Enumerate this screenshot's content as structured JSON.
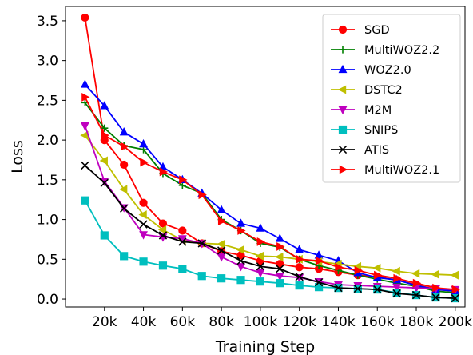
{
  "chart_data": {
    "type": "line",
    "xlabel": "Training Step",
    "ylabel": "Loss",
    "xlim": [
      0,
      205000
    ],
    "ylim": [
      -0.1,
      3.68
    ],
    "x_ticks": [
      20000,
      40000,
      60000,
      80000,
      100000,
      120000,
      140000,
      160000,
      180000,
      200000
    ],
    "x_tick_labels": [
      "20k",
      "40k",
      "60k",
      "80k",
      "100k",
      "120k",
      "140k",
      "160k",
      "180k",
      "200k"
    ],
    "y_ticks": [
      0.0,
      0.5,
      1.0,
      1.5,
      2.0,
      2.5,
      3.0,
      3.5
    ],
    "y_tick_labels": [
      "0.0",
      "0.5",
      "1.0",
      "1.5",
      "2.0",
      "2.5",
      "3.0",
      "3.5"
    ],
    "grid": false,
    "legend_position": "top-right",
    "x": [
      10000,
      20000,
      30000,
      40000,
      50000,
      60000,
      70000,
      80000,
      90000,
      100000,
      110000,
      120000,
      130000,
      140000,
      150000,
      160000,
      170000,
      180000,
      190000,
      200000
    ],
    "series": [
      {
        "name": "SGD",
        "color": "#ff0000",
        "marker": "circle",
        "values": [
          3.54,
          2.0,
          1.69,
          1.21,
          0.95,
          0.86,
          0.7,
          0.6,
          0.55,
          0.48,
          0.44,
          0.4,
          0.38,
          0.34,
          0.3,
          0.28,
          0.24,
          0.18,
          0.12,
          0.1
        ]
      },
      {
        "name": "MultiWOZ2.2",
        "color": "#008000",
        "marker": "plus",
        "values": [
          2.47,
          2.15,
          1.93,
          1.88,
          1.58,
          1.43,
          1.33,
          1.0,
          0.86,
          0.7,
          0.65,
          0.5,
          0.42,
          0.36,
          0.3,
          0.25,
          0.2,
          0.16,
          0.1,
          0.08
        ]
      },
      {
        "name": "WOZ2.0",
        "color": "#0000ff",
        "marker": "triangle-up",
        "values": [
          2.7,
          2.43,
          2.1,
          1.95,
          1.66,
          1.5,
          1.33,
          1.12,
          0.95,
          0.89,
          0.76,
          0.62,
          0.55,
          0.48,
          0.33,
          0.27,
          0.24,
          0.17,
          0.12,
          0.1
        ]
      },
      {
        "name": "DSTC2",
        "color": "#bfbf00",
        "marker": "triangle-left",
        "values": [
          2.06,
          1.74,
          1.38,
          1.06,
          0.87,
          0.74,
          0.7,
          0.69,
          0.62,
          0.54,
          0.53,
          0.5,
          0.47,
          0.44,
          0.41,
          0.39,
          0.35,
          0.32,
          0.31,
          0.3
        ]
      },
      {
        "name": "M2M",
        "color": "#bf00bf",
        "marker": "triangle-down",
        "values": [
          2.18,
          1.48,
          1.15,
          0.81,
          0.78,
          0.76,
          0.7,
          0.53,
          0.41,
          0.33,
          0.29,
          0.27,
          0.22,
          0.18,
          0.17,
          0.16,
          0.15,
          0.14,
          0.13,
          0.12
        ]
      },
      {
        "name": "SNIPS",
        "color": "#00bfbf",
        "marker": "square",
        "values": [
          1.24,
          0.8,
          0.54,
          0.47,
          0.42,
          0.38,
          0.29,
          0.26,
          0.24,
          0.22,
          0.2,
          0.17,
          0.15,
          0.14,
          0.13,
          0.12,
          0.08,
          0.05,
          0.02,
          0.01
        ]
      },
      {
        "name": "ATIS",
        "color": "#000000",
        "marker": "x",
        "values": [
          1.68,
          1.46,
          1.14,
          0.94,
          0.8,
          0.72,
          0.7,
          0.61,
          0.48,
          0.41,
          0.38,
          0.28,
          0.21,
          0.14,
          0.13,
          0.12,
          0.07,
          0.05,
          0.02,
          0.01
        ]
      },
      {
        "name": "MultiWOZ2.1",
        "color": "#ff0000",
        "marker": "triangle-right",
        "values": [
          2.54,
          2.06,
          1.92,
          1.72,
          1.6,
          1.5,
          1.31,
          0.98,
          0.86,
          0.72,
          0.66,
          0.5,
          0.48,
          0.4,
          0.36,
          0.3,
          0.26,
          0.2,
          0.14,
          0.12
        ]
      }
    ]
  }
}
